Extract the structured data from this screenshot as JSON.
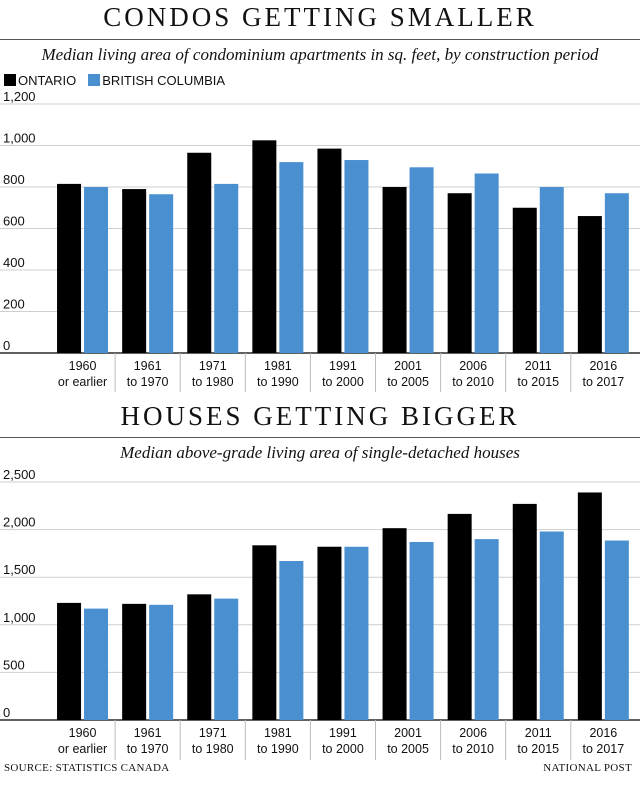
{
  "colors": {
    "ontario": "#000000",
    "bc": "#4a8fd0"
  },
  "legend": {
    "ontario": "ONTARIO",
    "bc": "BRITISH COLUMBIA"
  },
  "footer": {
    "source": "SOURCE: STATISTICS CANADA",
    "credit": "NATIONAL POST"
  },
  "chart_data": [
    {
      "type": "bar",
      "title": "CONDOS GETTING SMALLER",
      "subtitle": "Median living area of condominium apartments in sq. feet, by construction period",
      "categories": [
        [
          "1960",
          "or earlier"
        ],
        [
          "1961",
          "to 1970"
        ],
        [
          "1971",
          "to 1980"
        ],
        [
          "1981",
          "to 1990"
        ],
        [
          "1991",
          "to 2000"
        ],
        [
          "2001",
          "to 2005"
        ],
        [
          "2006",
          "to 2010"
        ],
        [
          "2011",
          "to 2015"
        ],
        [
          "2016",
          "to 2017"
        ]
      ],
      "series": [
        {
          "name": "ONTARIO",
          "values": [
            815,
            790,
            965,
            1025,
            985,
            800,
            770,
            700,
            660
          ]
        },
        {
          "name": "BRITISH COLUMBIA",
          "values": [
            800,
            765,
            815,
            920,
            930,
            895,
            865,
            800,
            770
          ]
        }
      ],
      "ylim": [
        0,
        1200
      ],
      "yticks": [
        0,
        200,
        400,
        600,
        800,
        1000,
        1200
      ],
      "ytick_labels": [
        "0",
        "200",
        "400",
        "600",
        "800",
        "1,000",
        "1,200"
      ]
    },
    {
      "type": "bar",
      "title": "HOUSES GETTING BIGGER",
      "subtitle": "Median above-grade living area of single-detached houses",
      "categories": [
        [
          "1960",
          "or earlier"
        ],
        [
          "1961",
          "to 1970"
        ],
        [
          "1971",
          "to 1980"
        ],
        [
          "1981",
          "to 1990"
        ],
        [
          "1991",
          "to 2000"
        ],
        [
          "2001",
          "to 2005"
        ],
        [
          "2006",
          "to 2010"
        ],
        [
          "2011",
          "to 2015"
        ],
        [
          "2016",
          "to 2017"
        ]
      ],
      "series": [
        {
          "name": "ONTARIO",
          "values": [
            1230,
            1220,
            1320,
            1835,
            1820,
            2015,
            2165,
            2270,
            2390
          ]
        },
        {
          "name": "BRITISH COLUMBIA",
          "values": [
            1170,
            1210,
            1275,
            1670,
            1820,
            1870,
            1900,
            1980,
            1885
          ]
        }
      ],
      "ylim": [
        0,
        2500
      ],
      "yticks": [
        0,
        500,
        1000,
        1500,
        2000,
        2500
      ],
      "ytick_labels": [
        "0",
        "500",
        "1,000",
        "1,500",
        "2,000",
        "2,500"
      ]
    }
  ]
}
